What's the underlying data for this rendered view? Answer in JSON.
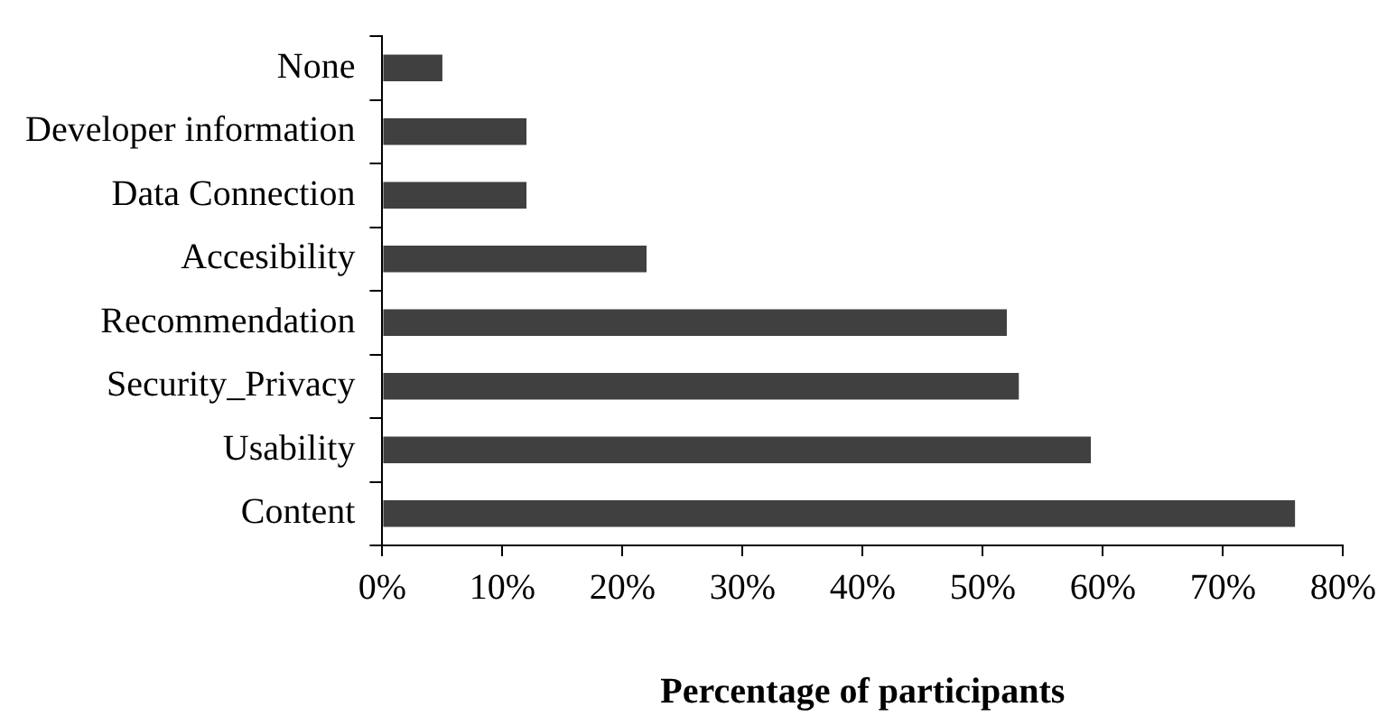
{
  "chart_data": {
    "type": "bar",
    "orientation": "horizontal",
    "xlabel": "Percentage of participants",
    "categories": [
      "None",
      "Developer information",
      "Data Connection",
      "Accesibility",
      "Recommendation",
      "Security_Privacy",
      "Usability",
      "Content"
    ],
    "values": [
      5,
      12,
      12,
      22,
      52,
      53,
      59,
      76
    ],
    "color": "#404040",
    "xlim": [
      0,
      80
    ],
    "xticks": [
      {
        "value": 0,
        "label": "0%"
      },
      {
        "value": 10,
        "label": "10%"
      },
      {
        "value": 20,
        "label": "20%"
      },
      {
        "value": 30,
        "label": "30%"
      },
      {
        "value": 40,
        "label": "40%"
      },
      {
        "value": 50,
        "label": "50%"
      },
      {
        "value": 60,
        "label": "60%"
      },
      {
        "value": 70,
        "label": "70%"
      },
      {
        "value": 80,
        "label": "80%"
      }
    ],
    "grid": false,
    "legend": false
  }
}
